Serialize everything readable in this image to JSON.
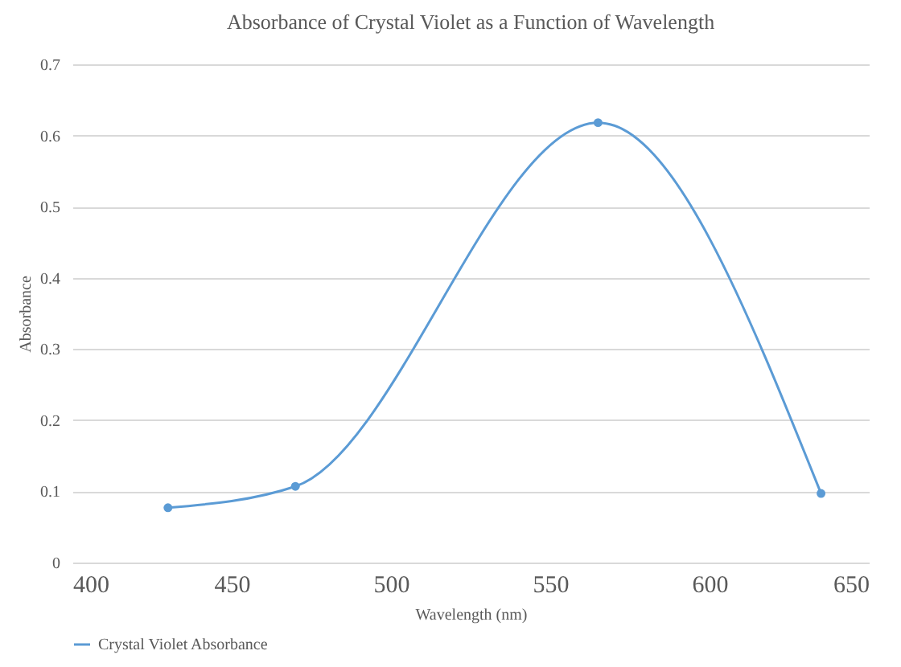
{
  "chart_data": {
    "type": "line",
    "title": "Absorbance of Crystal Violet as a Function of Wavelength",
    "xlabel": "Wavelength (nm)",
    "ylabel": "Absorbance",
    "x": [
      430,
      470,
      565,
      635
    ],
    "series": [
      {
        "name": "Crystal Violet Absorbance",
        "color": "#5b9bd5",
        "values": [
          0.077,
          0.107,
          0.618,
          0.097
        ]
      }
    ],
    "xlim": [
      400,
      650
    ],
    "xticks": [
      400,
      450,
      500,
      550,
      600,
      650
    ],
    "ylim": [
      0,
      0.7
    ],
    "yticks": [
      0,
      0.1,
      0.2,
      0.3,
      0.4,
      0.5,
      0.6,
      0.7
    ],
    "grid": "y",
    "legend": "bottom",
    "marker": "circle",
    "line_style": "solid"
  }
}
